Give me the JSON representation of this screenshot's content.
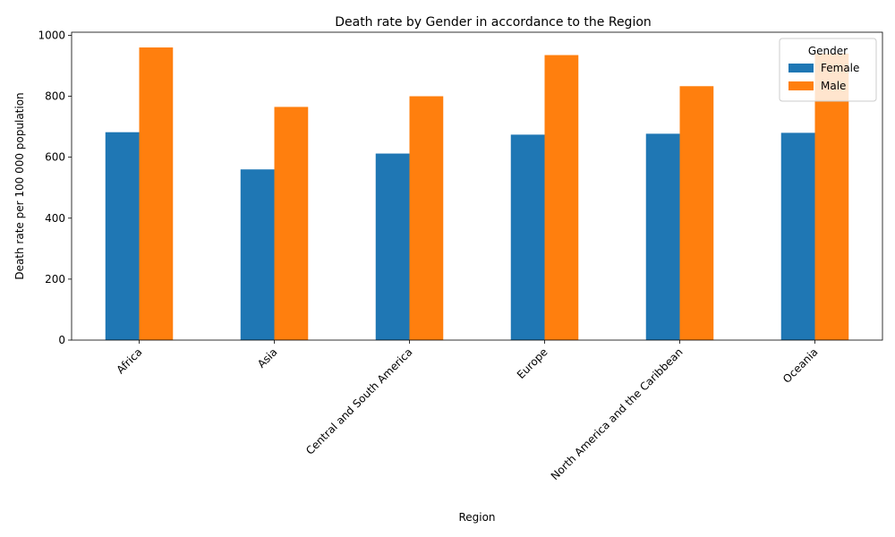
{
  "chart_data": {
    "type": "bar",
    "title": "Death rate by Gender in accordance to the Region",
    "xlabel": "Region",
    "ylabel": "Death rate per 100 000 population",
    "categories": [
      "Africa",
      "Asia",
      "Central and South America",
      "Europe",
      "North America and the Caribbean",
      "Oceania"
    ],
    "series": [
      {
        "name": "Female",
        "color": "#1f77b4",
        "values": [
          682,
          560,
          612,
          674,
          677,
          680
        ]
      },
      {
        "name": "Male",
        "color": "#ff7f0e",
        "values": [
          960,
          765,
          800,
          935,
          833,
          940
        ]
      }
    ],
    "ylim": [
      0,
      1010
    ],
    "yticks": [
      0,
      200,
      400,
      600,
      800,
      1000
    ],
    "grid": false,
    "legend": {
      "title": "Gender",
      "placement": "top-right"
    }
  }
}
